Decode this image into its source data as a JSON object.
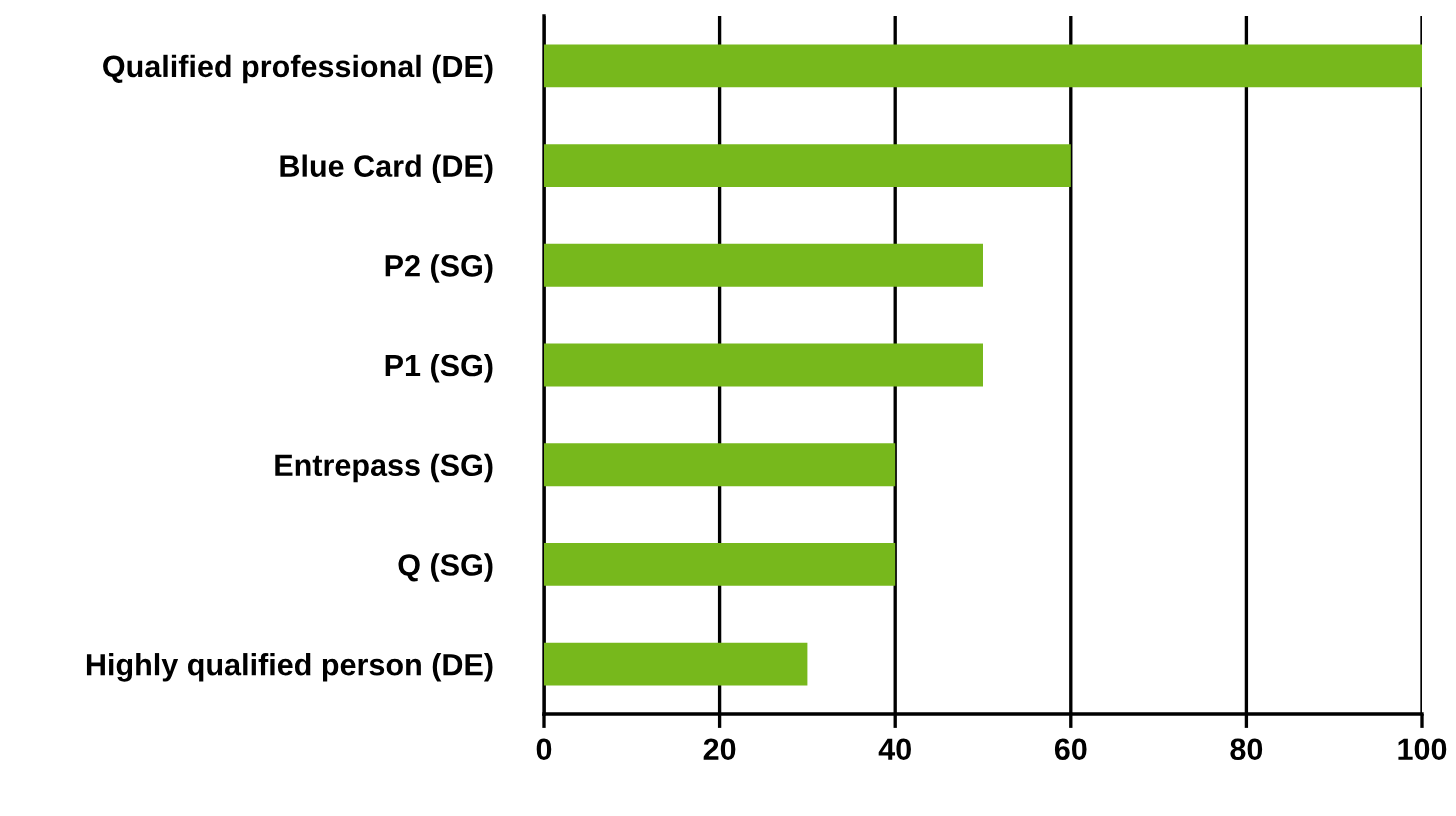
{
  "chart_data": {
    "type": "bar",
    "orientation": "horizontal",
    "categories": [
      "Qualified professional (DE)",
      "Blue Card (DE)",
      "P2 (SG)",
      "P1 (SG)",
      "Entrepass (SG)",
      "Q (SG)",
      "Highly qualified person (DE)"
    ],
    "values": [
      100,
      60,
      50,
      50,
      40,
      40,
      30
    ],
    "color": "#77b81c",
    "xlim": [
      0,
      100
    ],
    "xticks": [
      0,
      20,
      40,
      60,
      80,
      100
    ],
    "grid": "x",
    "legend": false
  }
}
